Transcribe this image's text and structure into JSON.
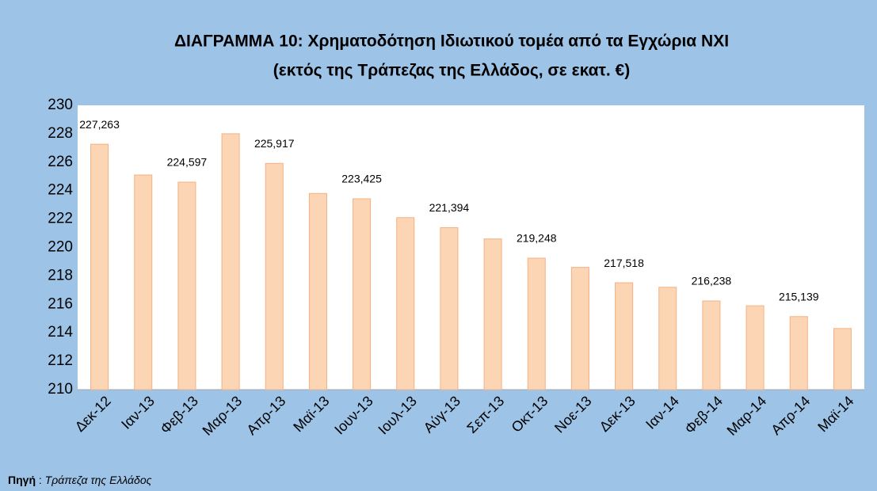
{
  "chart_data": {
    "type": "bar",
    "title": "ΔΙΑΓΡΑΜΜΑ 10: Χρηματοδότηση Ιδιωτικού τομέα από τα Εγχώρια ΝΧΙ",
    "subtitle": "(εκτός της Τράπεζας της Ελλάδος, σε εκατ. €)",
    "categories": [
      "Δεκ-12",
      "Ιαν-13",
      "Φεβ-13",
      "Μαρ-13",
      "Απρ-13",
      "Μαϊ-13",
      "Ιουν-13",
      "Ιουλ-13",
      "Αύγ-13",
      "Σεπ-13",
      "Οκτ-13",
      "Νοε-13",
      "Δεκ-13",
      "Ιαν-14",
      "Φεβ-14",
      "Μαρ-14",
      "Απρ-14",
      "Μαϊ-14"
    ],
    "values": [
      227.263,
      225.1,
      224.597,
      228.0,
      225.917,
      223.8,
      223.425,
      222.1,
      221.394,
      220.6,
      219.248,
      218.6,
      217.518,
      217.2,
      216.238,
      215.9,
      215.139,
      214.3
    ],
    "value_labels": [
      "227,263",
      null,
      "224,597",
      null,
      "225,917",
      null,
      "223,425",
      null,
      "221,394",
      null,
      "219,248",
      null,
      "217,518",
      null,
      "216,238",
      null,
      "215,139",
      null
    ],
    "color": "#fcd5b4",
    "ylim": [
      210,
      230
    ],
    "yticks": [
      210,
      212,
      214,
      216,
      218,
      220,
      222,
      224,
      226,
      228,
      230
    ],
    "grid": false,
    "source": {
      "label": "Πηγή",
      "separator": ":",
      "text": "Τράπεζα της Ελλάδος"
    }
  }
}
